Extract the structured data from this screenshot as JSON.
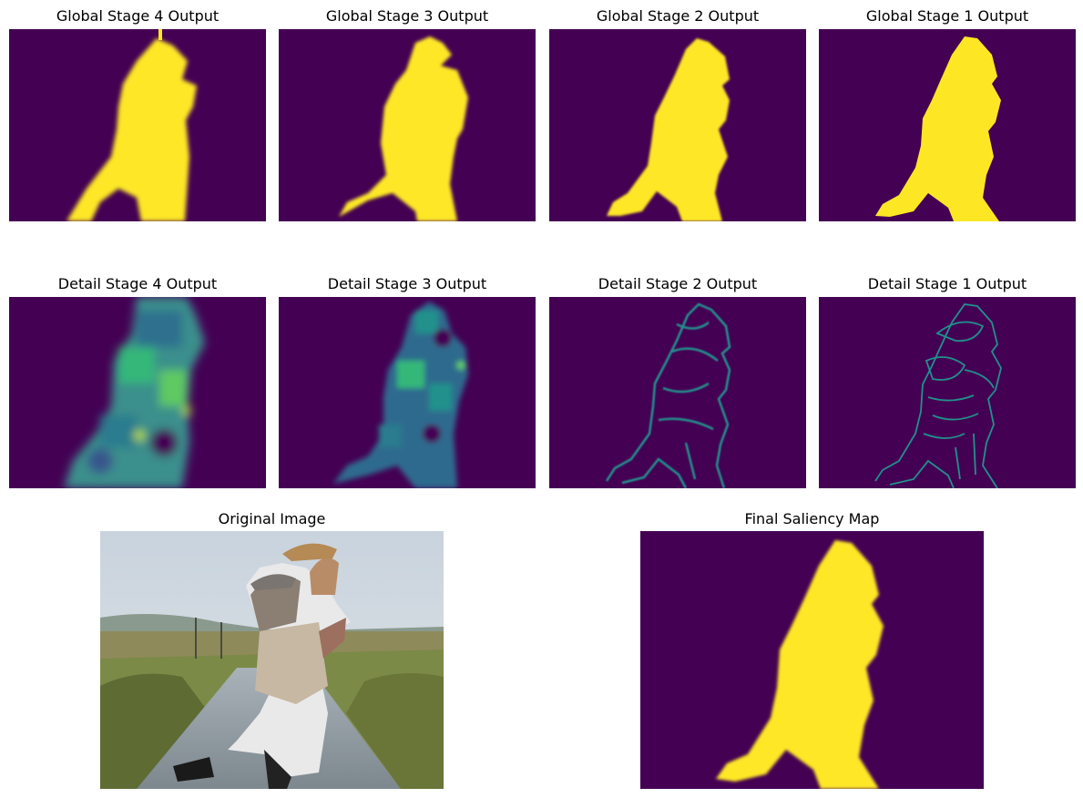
{
  "figure": {
    "panels": [
      {
        "id": "global_4",
        "title": "Global Stage 4 Output"
      },
      {
        "id": "global_3",
        "title": "Global Stage 3 Output"
      },
      {
        "id": "global_2",
        "title": "Global Stage 2 Output"
      },
      {
        "id": "global_1",
        "title": "Global Stage 1 Output"
      },
      {
        "id": "detail_4",
        "title": "Detail Stage 4 Output"
      },
      {
        "id": "detail_3",
        "title": "Detail Stage 3 Output"
      },
      {
        "id": "detail_2",
        "title": "Detail Stage 2 Output"
      },
      {
        "id": "detail_1",
        "title": "Detail Stage 1 Output"
      },
      {
        "id": "original",
        "title": "Original Image"
      },
      {
        "id": "final",
        "title": "Final Saliency Map"
      }
    ]
  },
  "colors": {
    "background_purple": "#440154",
    "foreground_yellow": "#fde725",
    "edge_teal": "#21918c",
    "edge_green": "#35b779"
  }
}
